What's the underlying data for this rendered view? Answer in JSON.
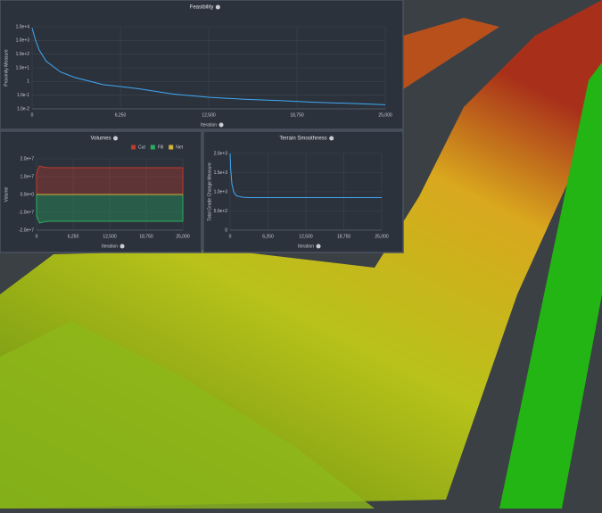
{
  "chart_data": [
    {
      "type": "line",
      "title": "Feasibility",
      "x_label": "Iteration",
      "y_label": "Proximity Measure",
      "log_y": true,
      "grid": true,
      "xlim": [
        0,
        25000
      ],
      "xticks": [
        0,
        {
          "value": 6250,
          "label": "6,250"
        },
        {
          "value": 12500,
          "label": "12,500"
        },
        {
          "value": 18750,
          "label": "18,750"
        },
        {
          "value": 25000,
          "label": "25,000"
        }
      ],
      "ylim": [
        0.01,
        10000
      ],
      "yticks": [
        {
          "value": 10000,
          "label": "1.0e+4"
        },
        {
          "value": 1000,
          "label": "1.0e+3"
        },
        {
          "value": 100,
          "label": "1.0e+2"
        },
        {
          "value": 10,
          "label": "1.0e+1"
        },
        1,
        {
          "value": 0.1,
          "label": "1.0e-1"
        },
        {
          "value": 0.01,
          "label": "1.0e-2"
        }
      ],
      "x": [
        0,
        250,
        500,
        1000,
        2000,
        3000,
        5000,
        7500,
        10000,
        12500,
        15000,
        17500,
        20000,
        22500,
        25000
      ],
      "series": [
        {
          "color": "#3fa9f5",
          "values": [
            8000,
            1000,
            200,
            30,
            5,
            2,
            0.6,
            0.3,
            0.12,
            0.07,
            0.05,
            0.04,
            0.03,
            0.025,
            0.02
          ]
        }
      ]
    },
    {
      "type": "area",
      "title": "Volumes",
      "x_label": "Iteration",
      "y_label": "Volume",
      "legend": "upper right",
      "grid": true,
      "xlim": [
        0,
        25000
      ],
      "xticks": [
        0,
        {
          "value": 6250,
          "label": "6,250"
        },
        {
          "value": 12500,
          "label": "12,500"
        },
        {
          "value": 18750,
          "label": "18,750"
        },
        {
          "value": 25000,
          "label": "25,000"
        }
      ],
      "ylim": [
        -20000000,
        20000000
      ],
      "yticks": [
        {
          "value": 20000000,
          "label": "2.0e+7"
        },
        {
          "value": 10000000,
          "label": "1.0e+7"
        },
        {
          "value": 0,
          "label": "0.0e+0"
        },
        {
          "value": -10000000,
          "label": "-1.0e+7"
        },
        {
          "value": -20000000,
          "label": "-2.0e+7"
        }
      ],
      "x": [
        0,
        500,
        1000,
        2000,
        25000
      ],
      "series": [
        {
          "name": "Cut",
          "color": "#c0392b",
          "values": [
            12000000,
            16000000,
            15500000,
            15000000,
            15000000
          ]
        },
        {
          "name": "Fill",
          "color": "#27ae60",
          "values": [
            -12000000,
            -16000000,
            -15500000,
            -15000000,
            -15000000
          ]
        },
        {
          "name": "Net",
          "color": "#d4b13a",
          "values": [
            0,
            0,
            0,
            0,
            0
          ]
        }
      ]
    },
    {
      "type": "line",
      "title": "Terrain Smoothness",
      "x_label": "Iteration",
      "y_label": "Total Grade Change Measure",
      "grid": true,
      "xlim": [
        0,
        25000
      ],
      "xticks": [
        0,
        {
          "value": 6250,
          "label": "6,250"
        },
        {
          "value": 12500,
          "label": "12,500"
        },
        {
          "value": 18750,
          "label": "18,750"
        },
        {
          "value": 25000,
          "label": "25,000"
        }
      ],
      "ylim": [
        0,
        2000
      ],
      "yticks": [
        {
          "value": 2000,
          "label": "2.0e+3"
        },
        {
          "value": 1500,
          "label": "1.5e+3"
        },
        {
          "value": 1000,
          "label": "1.0e+3"
        },
        {
          "value": 500,
          "label": "5.0e+2"
        },
        0
      ],
      "x": [
        0,
        100,
        300,
        600,
        1000,
        2000,
        3000,
        25000
      ],
      "series": [
        {
          "color": "#3fa9f5",
          "values": [
            2000,
            1600,
            1200,
            1000,
            900,
            860,
            850,
            850
          ]
        }
      ]
    }
  ]
}
